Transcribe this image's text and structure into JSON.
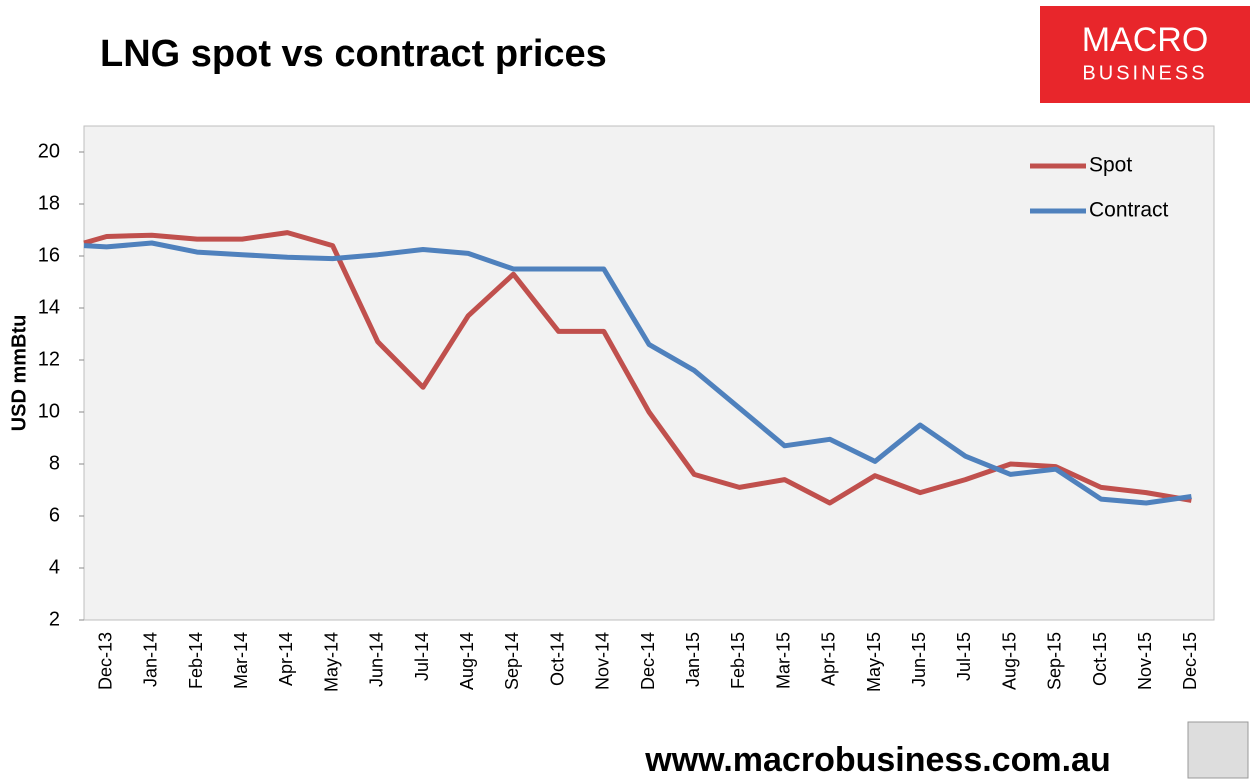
{
  "chart_data": {
    "type": "line",
    "title": "LNG spot vs contract prices",
    "brand": [
      "MACRO",
      "BUSINESS"
    ],
    "footer": "www.macrobusiness.com.au",
    "y_label": "USD mmBtu",
    "categories": [
      null,
      "Dec-13",
      "Jan-14",
      "Feb-14",
      "Mar-14",
      "Apr-14",
      "May-14",
      "Jun-14",
      "Jul-14",
      "Aug-14",
      "Sep-14",
      "Oct-14",
      "Nov-14",
      "Dec-14",
      "Jan-15",
      "Feb-15",
      "Mar-15",
      "Apr-15",
      "May-15",
      "Jun-15",
      "Jul-15",
      "Aug-15",
      "Sep-15",
      "Oct-15",
      "Nov-15",
      "Dec-15"
    ],
    "series": [
      {
        "name": "Spot",
        "color": "#c0504d",
        "values": [
          16.5,
          16.75,
          16.8,
          16.65,
          16.65,
          16.9,
          16.4,
          12.7,
          10.95,
          13.7,
          15.3,
          13.1,
          13.1,
          10.0,
          7.6,
          7.1,
          7.4,
          6.5,
          7.55,
          6.9,
          7.4,
          8.0,
          7.9,
          7.1,
          6.9,
          6.6
        ]
      },
      {
        "name": "Contract",
        "color": "#4f81bd",
        "values": [
          16.4,
          16.35,
          16.5,
          16.15,
          16.05,
          15.95,
          15.9,
          16.05,
          16.25,
          16.1,
          15.5,
          15.5,
          15.5,
          12.6,
          11.6,
          10.15,
          8.7,
          8.95,
          8.1,
          9.5,
          8.3,
          7.6,
          7.8,
          6.65,
          6.5,
          6.75
        ]
      }
    ],
    "ylim": [
      2,
      21
    ],
    "yticks": [
      2,
      4,
      6,
      8,
      10,
      12,
      14,
      16,
      18,
      20
    ],
    "grid": false,
    "legend": "upper right"
  }
}
